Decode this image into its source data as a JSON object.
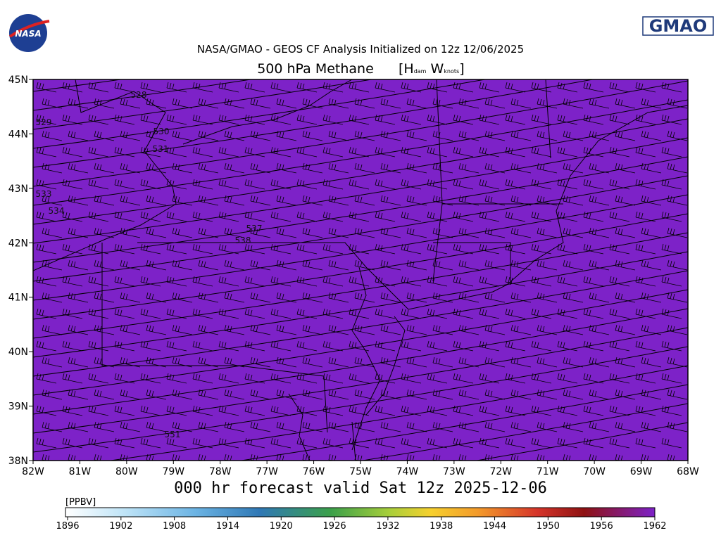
{
  "header": {
    "logo_left": "NASA",
    "logo_right": "GMAO",
    "title": "NASA/GMAO - GEOS CF Analysis Initialized on 12z 12/06/2025",
    "subtitle": "500 hPa Methane",
    "units": {
      "open": "[H",
      "h_sub": "dam",
      "w": "W",
      "w_sub": "knots",
      "close": "]"
    }
  },
  "map": {
    "lat_labels": [
      "45N",
      "44N",
      "43N",
      "42N",
      "41N",
      "40N",
      "39N",
      "38N"
    ],
    "lon_labels": [
      "82W",
      "81W",
      "80W",
      "79W",
      "78W",
      "77W",
      "76W",
      "75W",
      "74W",
      "73W",
      "72W",
      "71W",
      "70W",
      "69W",
      "68W"
    ],
    "contour_labels": [
      "528",
      "529",
      "530",
      "531",
      "533",
      "534",
      "537",
      "538",
      "551"
    ]
  },
  "forecast": "000 hr forecast valid Sat 12z 2025-12-06",
  "colorbar": {
    "unit": "[PPBV]",
    "ticks": [
      1896,
      1902,
      1908,
      1914,
      1920,
      1926,
      1932,
      1938,
      1944,
      1950,
      1956,
      1962
    ]
  }
}
